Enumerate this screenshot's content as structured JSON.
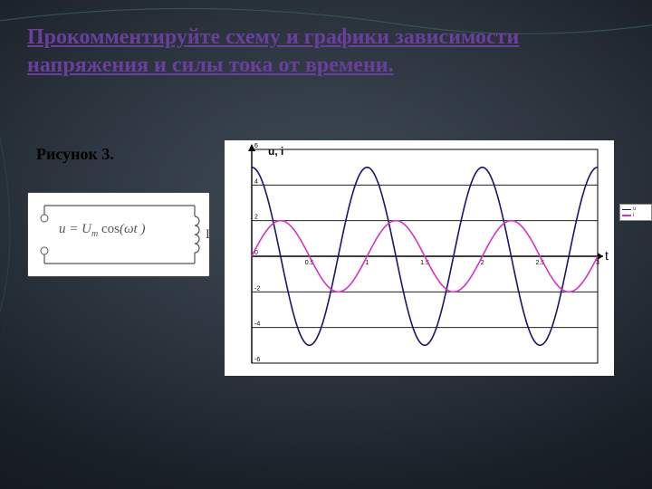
{
  "title": "Прокомментируйте схему и графики зависимости напряжения и силы тока от времени.",
  "caption": "Рисунок  3.",
  "inductor_label": "L",
  "formula": {
    "lhs": "u",
    "amp": "U",
    "sub": "m",
    "fn": " cos",
    "arg": "ωt "
  },
  "chart": {
    "type": "line",
    "background_color": "#ffffff",
    "grid_color": "#000000",
    "axis_color": "#000000",
    "curve_width": 1.6,
    "xlim": [
      0,
      3
    ],
    "ylim": [
      -6,
      6
    ],
    "y_ticks": [
      -6,
      -4,
      -2,
      0,
      2,
      4,
      6
    ],
    "x_ticks": [
      0,
      0.5,
      1,
      1.5,
      2,
      2.5,
      3
    ],
    "x_tick_labels": [
      "0",
      "0.5",
      "1",
      "1.5",
      "2",
      "2.5",
      "3"
    ],
    "ylabel": "u, i",
    "ylabel_fontsize": 12,
    "xlabel": "t",
    "xlabel_fontsize": 14,
    "tick_fontsize": 7,
    "n_samples": 200,
    "series": [
      {
        "name": "u",
        "color": "#1b1470",
        "amplitude": 5.0,
        "omega": 6.2832,
        "phase": 0.0,
        "func": "cos"
      },
      {
        "name": "i",
        "color": "#d333c5",
        "amplitude": 2.0,
        "omega": 6.2832,
        "phase": -1.5708,
        "func": "cos"
      }
    ]
  }
}
